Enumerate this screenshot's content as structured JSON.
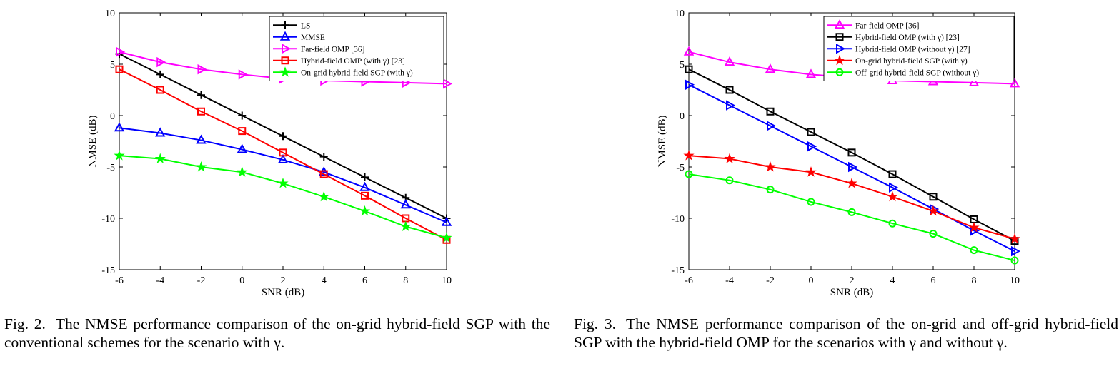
{
  "chart_data": [
    {
      "type": "line",
      "xlabel": "SNR (dB)",
      "ylabel": "NMSE (dB)",
      "xlim": [
        -6,
        10
      ],
      "ylim": [
        -15,
        10
      ],
      "xticks": [
        -6,
        -4,
        -2,
        0,
        2,
        4,
        6,
        8,
        10
      ],
      "yticks": [
        -15,
        -10,
        -5,
        0,
        5,
        10
      ],
      "grid": false,
      "legend_position": "top-right",
      "x": [
        -6,
        -4,
        -2,
        0,
        2,
        4,
        6,
        8,
        10
      ],
      "series": [
        {
          "name": "LS",
          "color": "#000000",
          "marker": "plus",
          "values": [
            6.0,
            4.0,
            2.0,
            0.0,
            -2.0,
            -4.0,
            -6.0,
            -8.0,
            -10.0
          ]
        },
        {
          "name": "MMSE",
          "color": "#0000ff",
          "marker": "triangle-up",
          "values": [
            -1.2,
            -1.7,
            -2.4,
            -3.3,
            -4.3,
            -5.5,
            -7.0,
            -8.7,
            -10.4
          ]
        },
        {
          "name": "Far-field OMP [36]",
          "color": "#ff00ff",
          "marker": "triangle-right",
          "values": [
            6.2,
            5.2,
            4.5,
            4.0,
            3.6,
            3.4,
            3.3,
            3.2,
            3.1
          ]
        },
        {
          "name": "Hybrid-field OMP (with γ) [23]",
          "color": "#ff0000",
          "marker": "square",
          "values": [
            4.5,
            2.5,
            0.4,
            -1.5,
            -3.6,
            -5.7,
            -7.8,
            -10.0,
            -12.1
          ]
        },
        {
          "name": "On-grid hybrid-field SGP (with γ)",
          "color": "#00ff00",
          "marker": "star",
          "values": [
            -3.9,
            -4.2,
            -5.0,
            -5.5,
            -6.6,
            -7.9,
            -9.3,
            -10.8,
            -11.9
          ]
        }
      ]
    },
    {
      "type": "line",
      "xlabel": "SNR (dB)",
      "ylabel": "NMSE (dB)",
      "xlim": [
        -6,
        10
      ],
      "ylim": [
        -15,
        10
      ],
      "xticks": [
        -6,
        -4,
        -2,
        0,
        2,
        4,
        6,
        8,
        10
      ],
      "yticks": [
        -15,
        -10,
        -5,
        0,
        5,
        10
      ],
      "grid": false,
      "legend_position": "top-right",
      "x": [
        -6,
        -4,
        -2,
        0,
        2,
        4,
        6,
        8,
        10
      ],
      "series": [
        {
          "name": "Far-field OMP [36]",
          "color": "#ff00ff",
          "marker": "triangle-up",
          "values": [
            6.2,
            5.2,
            4.5,
            4.0,
            3.7,
            3.4,
            3.3,
            3.2,
            3.1
          ]
        },
        {
          "name": "Hybrid-field OMP (with γ) [23]",
          "color": "#000000",
          "marker": "square",
          "values": [
            4.5,
            2.5,
            0.4,
            -1.6,
            -3.6,
            -5.7,
            -7.9,
            -10.1,
            -12.2
          ]
        },
        {
          "name": "Hybrid-field OMP (without γ) [27]",
          "color": "#0000ff",
          "marker": "triangle-right",
          "values": [
            3.0,
            1.0,
            -1.0,
            -3.0,
            -5.0,
            -7.0,
            -9.1,
            -11.2,
            -13.2
          ]
        },
        {
          "name": "On-grid hybrid-field SGP (with γ)",
          "color": "#ff0000",
          "marker": "star",
          "values": [
            -3.9,
            -4.2,
            -5.0,
            -5.5,
            -6.6,
            -7.9,
            -9.3,
            -10.9,
            -12.0
          ]
        },
        {
          "name": "Off-grid hybrid-field SGP (without γ)",
          "color": "#00ff00",
          "marker": "circle",
          "values": [
            -5.7,
            -6.3,
            -7.2,
            -8.4,
            -9.4,
            -10.5,
            -11.5,
            -13.1,
            -14.1
          ]
        }
      ]
    }
  ],
  "captions": [
    {
      "label": "Fig. 2.",
      "text": "The NMSE performance comparison of the on-grid hybrid-field SGP with the conventional schemes for the scenario with γ."
    },
    {
      "label": "Fig. 3.",
      "text": "The NMSE performance comparison of the on-grid and off-grid hybrid-field SGP with the hybrid-field OMP for the scenarios with γ and without γ."
    }
  ]
}
